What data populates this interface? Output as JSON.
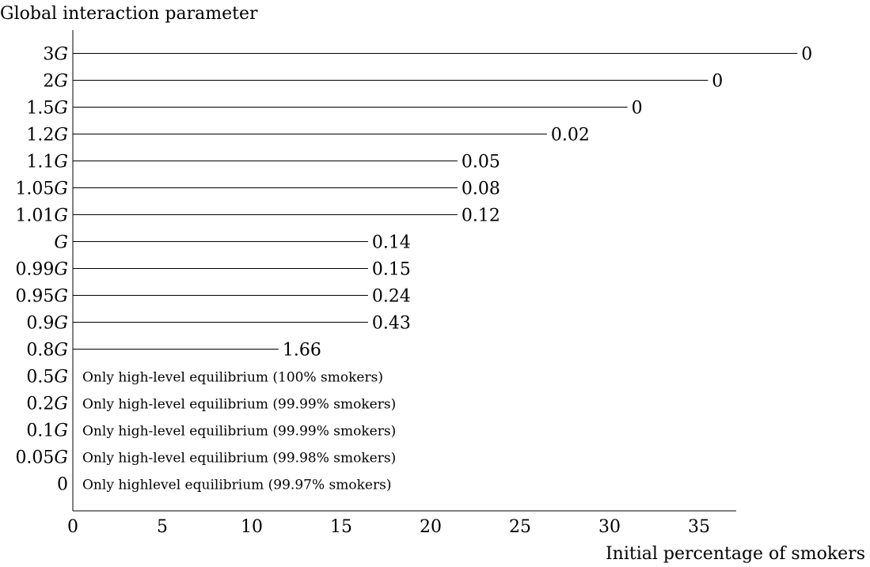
{
  "chart_data": {
    "type": "bar",
    "orientation": "horizontal",
    "ylabel": "Global interaction parameter",
    "xlabel": "Initial percentage of smokers",
    "xlim": [
      0,
      37
    ],
    "xticks": [
      0,
      5,
      10,
      15,
      20,
      25,
      30,
      35
    ],
    "grid": false,
    "categories": [
      {
        "coef": "3",
        "italic": "G"
      },
      {
        "coef": "2",
        "italic": "G"
      },
      {
        "coef": "1.5",
        "italic": "G"
      },
      {
        "coef": "1.2",
        "italic": "G"
      },
      {
        "coef": "1.1",
        "italic": "G"
      },
      {
        "coef": "1.05",
        "italic": "G"
      },
      {
        "coef": "1.01",
        "italic": "G"
      },
      {
        "coef": "",
        "italic": "G"
      },
      {
        "coef": "0.99",
        "italic": "G"
      },
      {
        "coef": "0.95",
        "italic": "G"
      },
      {
        "coef": "0.9",
        "italic": "G"
      },
      {
        "coef": "0.8",
        "italic": "G"
      },
      {
        "coef": "0.5",
        "italic": "G"
      },
      {
        "coef": "0.2",
        "italic": "G"
      },
      {
        "coef": "0.1",
        "italic": "G"
      },
      {
        "coef": "0.05",
        "italic": "G"
      },
      {
        "coef": "0",
        "italic": ""
      }
    ],
    "bars": [
      {
        "x": 40.5,
        "label": "0"
      },
      {
        "x": 35.5,
        "label": "0"
      },
      {
        "x": 31.0,
        "label": "0"
      },
      {
        "x": 26.5,
        "label": "0.02"
      },
      {
        "x": 21.5,
        "label": "0.05"
      },
      {
        "x": 21.5,
        "label": "0.08"
      },
      {
        "x": 21.5,
        "label": "0.12"
      },
      {
        "x": 16.5,
        "label": "0.14"
      },
      {
        "x": 16.5,
        "label": "0.15"
      },
      {
        "x": 16.5,
        "label": "0.24"
      },
      {
        "x": 16.5,
        "label": "0.43"
      },
      {
        "x": 11.5,
        "label": "1.66"
      }
    ],
    "notes": [
      "Only high-level equilibrium (100% smokers)",
      "Only high-level equilibrium (99.99% smokers)",
      "Only high-level equilibrium (99.99% smokers)",
      "Only high-level equilibrium (99.98% smokers)",
      "Only highlevel equilibrium (99.97% smokers)"
    ]
  }
}
